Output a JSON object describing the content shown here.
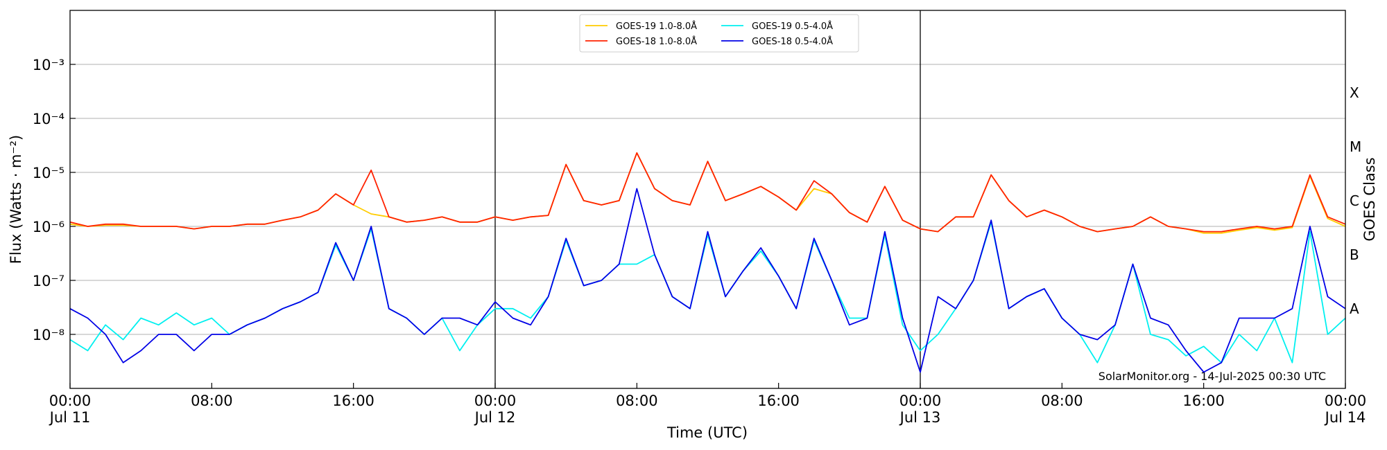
{
  "chart_data": {
    "type": "line",
    "xlabel": "Time (UTC)",
    "ylabel": "Flux (Watts · m⁻²)",
    "y2label": "GOES Class",
    "annotation": "SolarMonitor.org - 14-Jul-2025 00:30 UTC",
    "log_y": true,
    "grid": true,
    "legend": "upper center",
    "xlim": [
      0,
      72
    ],
    "ylim": [
      1e-09,
      0.01
    ],
    "y2lim": [
      1e-09,
      0.01
    ],
    "xticks": [
      {
        "value": 0,
        "label": "00:00\nJul 11"
      },
      {
        "value": 8,
        "label": "08:00"
      },
      {
        "value": 16,
        "label": "16:00"
      },
      {
        "value": 24,
        "label": "00:00\nJul 12"
      },
      {
        "value": 32,
        "label": "08:00"
      },
      {
        "value": 40,
        "label": "16:00"
      },
      {
        "value": 48,
        "label": "00:00\nJul 13"
      },
      {
        "value": 56,
        "label": "08:00"
      },
      {
        "value": 64,
        "label": "16:00"
      },
      {
        "value": 72,
        "label": "00:00\nJul 14"
      }
    ],
    "yticks": [
      {
        "value": 1e-08,
        "label": "10⁻⁸"
      },
      {
        "value": 1e-07,
        "label": "10⁻⁷"
      },
      {
        "value": 1e-06,
        "label": "10⁻⁶"
      },
      {
        "value": 1e-05,
        "label": "10⁻⁵"
      },
      {
        "value": 0.0001,
        "label": "10⁻⁴"
      },
      {
        "value": 0.001,
        "label": "10⁻³"
      }
    ],
    "y2ticks": [
      {
        "value": 3e-08,
        "label": "A"
      },
      {
        "value": 3e-07,
        "label": "B"
      },
      {
        "value": 3e-06,
        "label": "C"
      },
      {
        "value": 3e-05,
        "label": "M"
      },
      {
        "value": 0.0003,
        "label": "X"
      }
    ],
    "vlines": [
      24,
      48
    ],
    "x": [
      0,
      1,
      2,
      3,
      4,
      5,
      6,
      7,
      8,
      9,
      10,
      11,
      12,
      13,
      14,
      15,
      16,
      17,
      18,
      19,
      20,
      21,
      22,
      23,
      24,
      25,
      26,
      27,
      28,
      29,
      30,
      31,
      32,
      33,
      34,
      35,
      36,
      37,
      38,
      39,
      40,
      41,
      42,
      43,
      44,
      45,
      46,
      47,
      48,
      49,
      50,
      51,
      52,
      53,
      54,
      55,
      56,
      57,
      58,
      59,
      60,
      61,
      62,
      63,
      64,
      65,
      66,
      67,
      68,
      69,
      70,
      71,
      72
    ],
    "series": [
      {
        "name": "GOES-19 1.0-8.0Å",
        "color": "#ffcc00",
        "values": [
          1.1e-06,
          1e-06,
          1.05e-06,
          1.05e-06,
          1e-06,
          1e-06,
          1e-06,
          9e-07,
          1e-06,
          1e-06,
          1.1e-06,
          1.1e-06,
          1.3e-06,
          1.5e-06,
          2e-06,
          4e-06,
          2.5e-06,
          1.7e-06,
          1.5e-06,
          1.2e-06,
          1.3e-06,
          1.5e-06,
          1.2e-06,
          1.2e-06,
          1.5e-06,
          1.3e-06,
          1.5e-06,
          1.6e-06,
          1.4e-05,
          3e-06,
          2.5e-06,
          3e-06,
          2.3e-05,
          5e-06,
          3e-06,
          2.5e-06,
          1.6e-05,
          3e-06,
          4e-06,
          5.5e-06,
          3.5e-06,
          2e-06,
          5e-06,
          4e-06,
          1.8e-06,
          1.2e-06,
          5.5e-06,
          1.3e-06,
          9e-07,
          8e-07,
          1.5e-06,
          1.5e-06,
          9e-06,
          3e-06,
          1.5e-06,
          2e-06,
          1.5e-06,
          1e-06,
          8e-07,
          9e-07,
          1e-06,
          1.5e-06,
          1e-06,
          9e-07,
          7.5e-07,
          7.5e-07,
          8.5e-07,
          9.5e-07,
          8.5e-07,
          9.5e-07,
          8.5e-06,
          1.4e-06,
          1e-06
        ]
      },
      {
        "name": "GOES-18 1.0-8.0Å",
        "color": "#ff2200",
        "values": [
          1.2e-06,
          1e-06,
          1.1e-06,
          1.1e-06,
          1e-06,
          1e-06,
          1e-06,
          9e-07,
          1e-06,
          1e-06,
          1.1e-06,
          1.1e-06,
          1.3e-06,
          1.5e-06,
          2e-06,
          4e-06,
          2.5e-06,
          1.1e-05,
          1.5e-06,
          1.2e-06,
          1.3e-06,
          1.5e-06,
          1.2e-06,
          1.2e-06,
          1.5e-06,
          1.3e-06,
          1.5e-06,
          1.6e-06,
          1.4e-05,
          3e-06,
          2.5e-06,
          3e-06,
          2.3e-05,
          5e-06,
          3e-06,
          2.5e-06,
          1.6e-05,
          3e-06,
          4e-06,
          5.5e-06,
          3.5e-06,
          2e-06,
          7e-06,
          4e-06,
          1.8e-06,
          1.2e-06,
          5.5e-06,
          1.3e-06,
          9e-07,
          8e-07,
          1.5e-06,
          1.5e-06,
          9e-06,
          3e-06,
          1.5e-06,
          2e-06,
          1.5e-06,
          1e-06,
          8e-07,
          9e-07,
          1e-06,
          1.5e-06,
          1e-06,
          9e-07,
          8e-07,
          8e-07,
          9e-07,
          1e-06,
          9e-07,
          1e-06,
          9e-06,
          1.5e-06,
          1.1e-06
        ]
      },
      {
        "name": "GOES-19 0.5-4.0Å",
        "color": "#00f0f0",
        "values": [
          8e-09,
          5e-09,
          1.5e-08,
          8e-09,
          2e-08,
          1.5e-08,
          2.5e-08,
          1.5e-08,
          2e-08,
          1e-08,
          1.5e-08,
          2e-08,
          3e-08,
          4e-08,
          6e-08,
          4.5e-07,
          1e-07,
          9e-07,
          3e-08,
          2e-08,
          1e-08,
          2e-08,
          5e-09,
          1.5e-08,
          3e-08,
          3e-08,
          2e-08,
          5e-08,
          5.5e-07,
          8e-08,
          1e-07,
          2e-07,
          2e-07,
          3e-07,
          5e-08,
          3e-08,
          7e-07,
          5e-08,
          1.5e-07,
          3.5e-07,
          1.2e-07,
          3e-08,
          5.5e-07,
          1e-07,
          2e-08,
          2e-08,
          7e-07,
          1.5e-08,
          5e-09,
          1e-08,
          3e-08,
          1e-07,
          1.2e-06,
          3e-08,
          5e-08,
          7e-08,
          2e-08,
          1e-08,
          3e-09,
          1.5e-08,
          2e-07,
          1e-08,
          8e-09,
          4e-09,
          6e-09,
          3e-09,
          1e-08,
          5e-09,
          2e-08,
          3e-09,
          8e-07,
          1e-08,
          2e-08
        ]
      },
      {
        "name": "GOES-18 0.5-4.0Å",
        "color": "#0000e6",
        "values": [
          3e-08,
          2e-08,
          1e-08,
          3e-09,
          5e-09,
          1e-08,
          1e-08,
          5e-09,
          1e-08,
          1e-08,
          1.5e-08,
          2e-08,
          3e-08,
          4e-08,
          6e-08,
          5e-07,
          1e-07,
          1e-06,
          3e-08,
          2e-08,
          1e-08,
          2e-08,
          2e-08,
          1.5e-08,
          4e-08,
          2e-08,
          1.5e-08,
          5e-08,
          6e-07,
          8e-08,
          1e-07,
          2e-07,
          5e-06,
          3e-07,
          5e-08,
          3e-08,
          8e-07,
          5e-08,
          1.5e-07,
          4e-07,
          1.2e-07,
          3e-08,
          6e-07,
          1e-07,
          1.5e-08,
          2e-08,
          8e-07,
          2e-08,
          2e-09,
          5e-08,
          3e-08,
          1e-07,
          1.3e-06,
          3e-08,
          5e-08,
          7e-08,
          2e-08,
          1e-08,
          8e-09,
          1.5e-08,
          2e-07,
          2e-08,
          1.5e-08,
          5e-09,
          2e-09,
          3e-09,
          2e-08,
          2e-08,
          2e-08,
          3e-08,
          1e-06,
          5e-08,
          3e-08
        ]
      }
    ]
  }
}
